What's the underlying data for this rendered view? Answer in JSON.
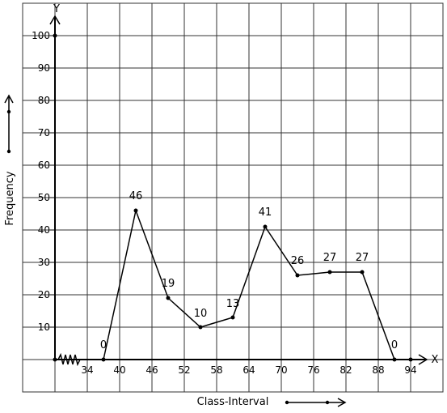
{
  "chart_data": {
    "type": "line",
    "title": "",
    "xlabel": "Class-Interval",
    "ylabel": "Frequency",
    "x_axis_letter": "X",
    "y_axis_letter": "Y",
    "x_tick_labels": [
      "34",
      "40",
      "46",
      "52",
      "58",
      "64",
      "70",
      "76",
      "82",
      "88",
      "94"
    ],
    "y_tick_labels": [
      "10",
      "20",
      "30",
      "40",
      "50",
      "60",
      "70",
      "80",
      "90",
      "100"
    ],
    "ylim": [
      0,
      100
    ],
    "grid": true,
    "axis_break_on_x": true,
    "series": [
      {
        "x": [
          37,
          43,
          49,
          55,
          61,
          67,
          73,
          79,
          85,
          91
        ],
        "y": [
          0,
          46,
          19,
          10,
          13,
          41,
          26,
          27,
          27,
          0
        ],
        "labels": [
          "0",
          "46",
          "19",
          "10",
          "13",
          "41",
          "26",
          "27",
          "27",
          "0"
        ]
      }
    ]
  }
}
